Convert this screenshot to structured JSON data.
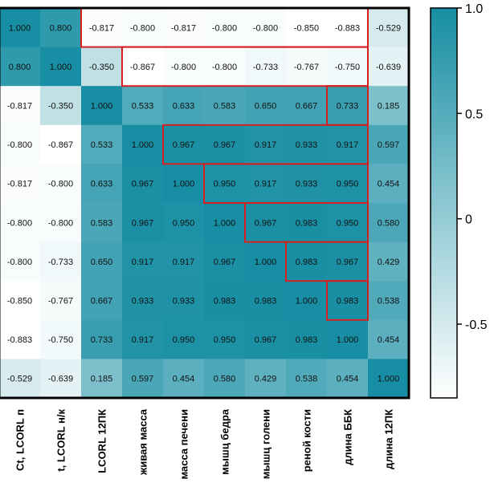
{
  "chart_data": {
    "type": "heatmap",
    "title": "",
    "row_labels": [
      "",
      "",
      "",
      "",
      "",
      "",
      "",
      "",
      "",
      ""
    ],
    "col_labels": [
      "Ct, LCORL п",
      "t, LCORL н/к",
      "LCORL 12ПК",
      "живая масса",
      "масса печени",
      "мышц бедра",
      "мышц голени",
      "реной кости",
      "длина ББК",
      "длина 12ПК"
    ],
    "values": [
      [
        1.0,
        0.8,
        -0.817,
        -0.8,
        -0.817,
        -0.8,
        -0.8,
        -0.85,
        -0.883,
        -0.529
      ],
      [
        0.8,
        1.0,
        -0.35,
        -0.867,
        -0.8,
        -0.8,
        -0.733,
        -0.767,
        -0.75,
        -0.639
      ],
      [
        -0.817,
        -0.35,
        1.0,
        0.533,
        0.633,
        0.583,
        0.65,
        0.667,
        0.733,
        0.185
      ],
      [
        -0.8,
        -0.867,
        0.533,
        1.0,
        0.967,
        0.967,
        0.917,
        0.933,
        0.917,
        0.597
      ],
      [
        -0.817,
        -0.8,
        0.633,
        0.967,
        1.0,
        0.95,
        0.917,
        0.933,
        0.95,
        0.454
      ],
      [
        -0.8,
        -0.8,
        0.583,
        0.967,
        0.95,
        1.0,
        0.967,
        0.983,
        0.95,
        0.58
      ],
      [
        -0.8,
        -0.733,
        0.65,
        0.917,
        0.917,
        0.967,
        1.0,
        0.983,
        0.967,
        0.429
      ],
      [
        -0.85,
        -0.767,
        0.667,
        0.933,
        0.933,
        0.983,
        0.983,
        1.0,
        0.983,
        0.538
      ],
      [
        -0.883,
        -0.75,
        0.733,
        0.917,
        0.95,
        0.95,
        0.967,
        0.983,
        1.0,
        0.454
      ],
      [
        -0.529,
        -0.639,
        0.185,
        0.597,
        0.454,
        0.58,
        0.429,
        0.538,
        0.454,
        1.0
      ]
    ],
    "value_labels": [
      [
        "1.000",
        "0.800",
        "-0.817",
        "-0.800",
        "-0.817",
        "-0.800",
        "-0.800",
        "-0.850",
        "-0.883",
        "-0.529"
      ],
      [
        "0.800",
        "1.000",
        "-0.350",
        "-0.867",
        "-0.800",
        "-0.800",
        "-0.733",
        "-0.767",
        "-0.750",
        "-0.639"
      ],
      [
        "-0.817",
        "-0.350",
        "1.000",
        "0.533",
        "0.633",
        "0.583",
        "0.650",
        "0.667",
        "0.733",
        "0.185"
      ],
      [
        "-0.800",
        "-0.867",
        "0.533",
        "1.000",
        "0.967",
        "0.967",
        "0.917",
        "0.933",
        "0.917",
        "0.597"
      ],
      [
        "-0.817",
        "-0.800",
        "0.633",
        "0.967",
        "1.000",
        "0.950",
        "0.917",
        "0.933",
        "0.950",
        "0.454"
      ],
      [
        "-0.800",
        "-0.800",
        "0.583",
        "0.967",
        "0.950",
        "1.000",
        "0.967",
        "0.983",
        "0.950",
        "0.580"
      ],
      [
        "-0.800",
        "-0.733",
        "0.650",
        "0.917",
        "0.917",
        "0.967",
        "1.000",
        "0.983",
        "0.967",
        "0.429"
      ],
      [
        "-0.850",
        "-0.767",
        "0.667",
        "0.933",
        "0.933",
        "0.983",
        "0.983",
        "1.000",
        "0.983",
        "0.538"
      ],
      [
        "-0.883",
        "-0.750",
        "0.733",
        "0.917",
        "0.950",
        "0.950",
        "0.967",
        "0.983",
        "1.000",
        "0.454"
      ],
      [
        "-0.529",
        "-0.639",
        "0.185",
        "0.597",
        "0.454",
        "0.580",
        "0.429",
        "0.538",
        "0.454",
        "1.000"
      ]
    ],
    "highlight_regions": [
      {
        "rows": [
          0,
          0
        ],
        "cols": [
          2,
          8
        ]
      },
      {
        "rows": [
          1,
          1
        ],
        "cols": [
          3,
          8
        ]
      },
      {
        "rows": [
          2,
          2
        ],
        "cols": [
          8,
          8
        ]
      },
      {
        "rows": [
          3,
          3
        ],
        "cols": [
          4,
          8
        ]
      },
      {
        "rows": [
          4,
          4
        ],
        "cols": [
          5,
          8
        ]
      },
      {
        "rows": [
          5,
          5
        ],
        "cols": [
          6,
          8
        ]
      },
      {
        "rows": [
          6,
          6
        ],
        "cols": [
          7,
          8
        ]
      },
      {
        "rows": [
          7,
          7
        ],
        "cols": [
          8,
          8
        ]
      }
    ],
    "colorscale": {
      "min": -0.85,
      "max": 1.0,
      "low_color": "#ffffff",
      "high_color": "#178ea3"
    },
    "colorbar": {
      "ticks": [
        1.0,
        0.5,
        0,
        -0.5
      ],
      "tick_labels": [
        "1.0",
        "0.5",
        "0",
        "-0.5"
      ]
    },
    "highlight_color": "#d62020",
    "grid": false,
    "legend": "colorbar-right"
  }
}
